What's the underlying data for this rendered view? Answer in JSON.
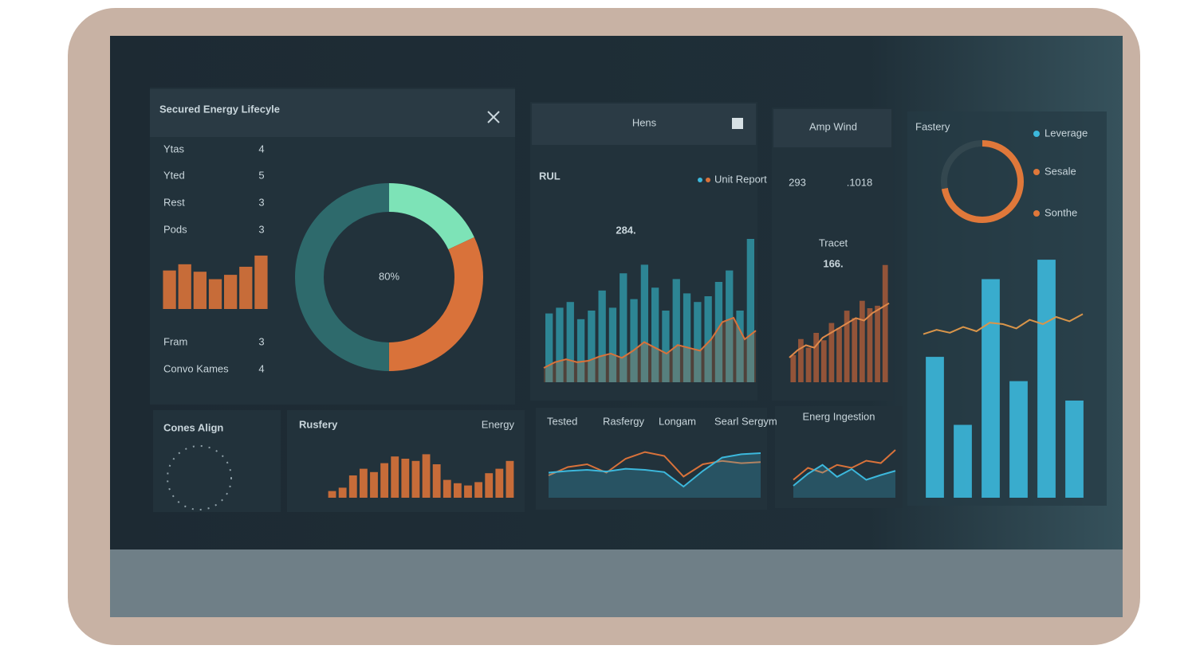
{
  "summary": {
    "title": "Secured Energy Lifecyle",
    "list": [
      {
        "label": "Ytas",
        "value": 4
      },
      {
        "label": "Yted",
        "value": 5
      },
      {
        "label": "Rest",
        "value": 3
      },
      {
        "label": "Pods",
        "value": 3
      }
    ],
    "mini_bars": {
      "values": [
        62,
        72,
        60,
        48,
        55,
        68,
        86
      ],
      "color": "#d9723a",
      "ylim": [
        0,
        100
      ]
    },
    "list2": [
      {
        "label": "Fram",
        "value": 3
      },
      {
        "label": "Convo Kames",
        "value": 4
      }
    ],
    "donut": {
      "center_label": "80%",
      "values": [
        18,
        32,
        50
      ],
      "colors": [
        "#7de3b7",
        "#d9723a",
        "#2e6a6c"
      ]
    }
  },
  "trend": {
    "header": "Hens",
    "label": "RUL",
    "legend": "Unit Report",
    "headline": "284.",
    "bars": {
      "values": [
        48,
        52,
        56,
        44,
        50,
        64,
        52,
        76,
        58,
        82,
        66,
        50,
        72,
        62,
        56,
        60,
        70,
        78,
        50,
        100
      ],
      "color": "#2f8e9e",
      "ylim": [
        0,
        100
      ]
    },
    "line": {
      "values": [
        10,
        14,
        16,
        14,
        15,
        18,
        20,
        17,
        22,
        28,
        24,
        20,
        26,
        24,
        22,
        30,
        42,
        45,
        30,
        36
      ],
      "color": "#d9723a",
      "ylim": [
        0,
        100
      ]
    }
  },
  "totals": {
    "header": "Amp Wind",
    "primary": "293",
    "secondary": ".1018",
    "caption": "Tracet",
    "headline": "166.",
    "bars": {
      "values": [
        22,
        35,
        28,
        40,
        34,
        48,
        44,
        58,
        52,
        66,
        60,
        62,
        95
      ],
      "color": "#a0583a",
      "ylim": [
        0,
        100
      ]
    },
    "line": {
      "values": [
        20,
        26,
        30,
        28,
        36,
        40,
        44,
        48,
        52,
        50,
        56,
        60,
        64
      ],
      "color": "#e08a4a",
      "ylim": [
        0,
        100
      ]
    }
  },
  "fastery": {
    "title": "Fastery",
    "gauge": {
      "values": [
        72,
        28
      ],
      "colors": [
        "#e0783a",
        "#33474f"
      ]
    },
    "legend": [
      {
        "label": "Leverage",
        "color": "#3cb8dc"
      },
      {
        "label": "Sesale",
        "color": "#e0783a"
      },
      {
        "label": "Sonthe",
        "color": "#e0783a"
      }
    ],
    "bars": {
      "values": [
        58,
        30,
        90,
        48,
        98,
        40
      ],
      "color": "#3cb8dc",
      "ylim": [
        0,
        100
      ]
    },
    "line": {
      "values": [
        56,
        62,
        58,
        66,
        60,
        72,
        70,
        64,
        76,
        70,
        80,
        74,
        84
      ],
      "color": "#d9954a",
      "ylim": [
        0,
        100
      ]
    }
  },
  "bottom": {
    "align": {
      "title": "Cones Align"
    },
    "energy": {
      "title": "Rusfery",
      "subtitle": "Energy",
      "bars": {
        "values": [
          12,
          18,
          40,
          52,
          46,
          62,
          74,
          70,
          66,
          78,
          60,
          32,
          26,
          22,
          28,
          44,
          52,
          66
        ],
        "color": "#d9723a",
        "ylim": [
          0,
          100
        ]
      }
    },
    "tabs": {
      "labels": [
        "Tested",
        "Rasfergy",
        "Longam",
        "Searl Sergym"
      ],
      "line_a": {
        "values": [
          40,
          55,
          60,
          45,
          70,
          82,
          75,
          38,
          60,
          66,
          62,
          64
        ],
        "color": "#d9723a",
        "ylim": [
          0,
          100
        ]
      },
      "line_b": {
        "values": [
          45,
          48,
          50,
          47,
          52,
          50,
          46,
          20,
          48,
          72,
          78,
          80
        ],
        "color": "#3cb8dc",
        "ylim": [
          0,
          100
        ]
      }
    },
    "ingestion": {
      "title": "Energ Ingestion",
      "line_a": {
        "values": [
          30,
          50,
          42,
          55,
          50,
          62,
          58,
          80
        ],
        "color": "#d9723a",
        "ylim": [
          0,
          100
        ]
      },
      "line_b": {
        "values": [
          20,
          40,
          55,
          35,
          48,
          30,
          38,
          45
        ],
        "color": "#3cb8dc",
        "ylim": [
          0,
          100
        ]
      }
    }
  }
}
